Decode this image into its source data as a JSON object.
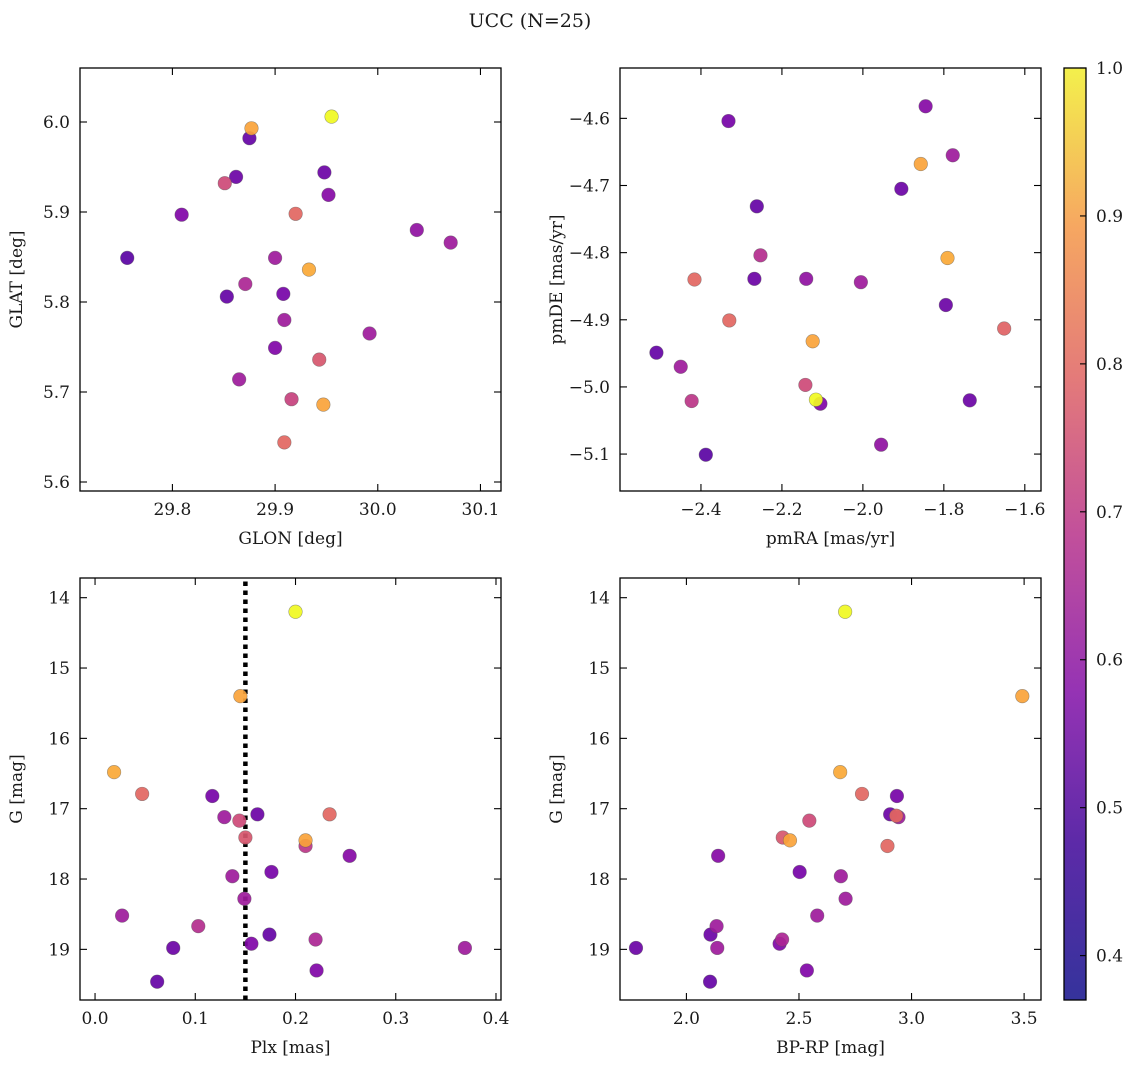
{
  "title": "UCC (N=25)",
  "colorbar": {
    "range": [
      0.37,
      1.0
    ],
    "ticks": [
      "0.4",
      "0.5",
      "0.6",
      "0.7",
      "0.8",
      "0.9",
      "1.0"
    ],
    "colormap": "plasma"
  },
  "chart_data": [
    {
      "type": "scatter",
      "xlabel": "GLON [deg]",
      "ylabel": "GLAT [deg]",
      "xlim": [
        29.71,
        30.12
      ],
      "ylim": [
        5.59,
        6.06
      ],
      "xticks": [
        "29.8",
        "29.9",
        "30.0",
        "30.1"
      ],
      "yticks": [
        "5.6",
        "5.7",
        "5.8",
        "5.9",
        "6.0"
      ],
      "points": [
        {
          "x": 29.955,
          "y": 6.006,
          "c": 1.0
        },
        {
          "x": 29.877,
          "y": 5.993,
          "c": 0.85
        },
        {
          "x": 29.875,
          "y": 5.982,
          "c": 0.42
        },
        {
          "x": 29.862,
          "y": 5.939,
          "c": 0.43
        },
        {
          "x": 29.851,
          "y": 5.932,
          "c": 0.65
        },
        {
          "x": 29.948,
          "y": 5.944,
          "c": 0.43
        },
        {
          "x": 29.952,
          "y": 5.919,
          "c": 0.48
        },
        {
          "x": 29.809,
          "y": 5.897,
          "c": 0.47
        },
        {
          "x": 29.92,
          "y": 5.898,
          "c": 0.72
        },
        {
          "x": 29.756,
          "y": 5.849,
          "c": 0.4
        },
        {
          "x": 29.9,
          "y": 5.849,
          "c": 0.53
        },
        {
          "x": 29.933,
          "y": 5.836,
          "c": 0.86
        },
        {
          "x": 30.038,
          "y": 5.88,
          "c": 0.5
        },
        {
          "x": 30.071,
          "y": 5.866,
          "c": 0.53
        },
        {
          "x": 29.871,
          "y": 5.82,
          "c": 0.56
        },
        {
          "x": 29.853,
          "y": 5.806,
          "c": 0.42
        },
        {
          "x": 29.908,
          "y": 5.809,
          "c": 0.45
        },
        {
          "x": 29.909,
          "y": 5.78,
          "c": 0.53
        },
        {
          "x": 29.992,
          "y": 5.765,
          "c": 0.53
        },
        {
          "x": 29.9,
          "y": 5.749,
          "c": 0.47
        },
        {
          "x": 29.943,
          "y": 5.736,
          "c": 0.68
        },
        {
          "x": 29.865,
          "y": 5.714,
          "c": 0.53
        },
        {
          "x": 29.916,
          "y": 5.692,
          "c": 0.63
        },
        {
          "x": 29.947,
          "y": 5.686,
          "c": 0.85
        },
        {
          "x": 29.909,
          "y": 5.644,
          "c": 0.72
        }
      ]
    },
    {
      "type": "scatter",
      "xlabel": "pmRA [mas/yr]",
      "ylabel": "pmDE [mas/yr]",
      "xlim": [
        -2.6,
        -1.56
      ],
      "ylim": [
        -5.155,
        -4.525
      ],
      "xticks": [
        "−2.4",
        "−2.2",
        "−2.0",
        "−1.8",
        "−1.6"
      ],
      "yticks": [
        "−5.1",
        "−5.0",
        "−4.9",
        "−4.8",
        "−4.7",
        "−4.6"
      ],
      "points": [
        {
          "x": -2.332,
          "y": -4.604,
          "c": 0.45
        },
        {
          "x": -1.845,
          "y": -4.582,
          "c": 0.48
        },
        {
          "x": -1.778,
          "y": -4.655,
          "c": 0.53
        },
        {
          "x": -1.857,
          "y": -4.668,
          "c": 0.85
        },
        {
          "x": -1.905,
          "y": -4.705,
          "c": 0.43
        },
        {
          "x": -2.262,
          "y": -4.731,
          "c": 0.42
        },
        {
          "x": -2.253,
          "y": -4.804,
          "c": 0.58
        },
        {
          "x": -1.791,
          "y": -4.808,
          "c": 0.86
        },
        {
          "x": -2.416,
          "y": -4.84,
          "c": 0.72
        },
        {
          "x": -2.268,
          "y": -4.839,
          "c": 0.43
        },
        {
          "x": -2.14,
          "y": -4.839,
          "c": 0.5
        },
        {
          "x": -2.005,
          "y": -4.844,
          "c": 0.53
        },
        {
          "x": -1.795,
          "y": -4.878,
          "c": 0.43
        },
        {
          "x": -2.33,
          "y": -4.901,
          "c": 0.72
        },
        {
          "x": -1.651,
          "y": -4.913,
          "c": 0.71
        },
        {
          "x": -2.124,
          "y": -4.932,
          "c": 0.85
        },
        {
          "x": -2.51,
          "y": -4.949,
          "c": 0.42
        },
        {
          "x": -2.45,
          "y": -4.97,
          "c": 0.53
        },
        {
          "x": -2.142,
          "y": -4.997,
          "c": 0.65
        },
        {
          "x": -2.423,
          "y": -5.021,
          "c": 0.6
        },
        {
          "x": -2.116,
          "y": -5.019,
          "c": 1.0
        },
        {
          "x": -2.105,
          "y": -5.025,
          "c": 0.47
        },
        {
          "x": -1.736,
          "y": -5.02,
          "c": 0.43
        },
        {
          "x": -1.955,
          "y": -5.086,
          "c": 0.5
        },
        {
          "x": -2.388,
          "y": -5.101,
          "c": 0.4
        }
      ]
    },
    {
      "type": "scatter",
      "xlabel": "Plx [mas]",
      "ylabel": "G [mag]",
      "xlim": [
        -0.015,
        0.405
      ],
      "ylim": [
        19.72,
        13.72
      ],
      "xticks": [
        "0.0",
        "0.1",
        "0.2",
        "0.3",
        "0.4"
      ],
      "yticks": [
        "14",
        "15",
        "16",
        "17",
        "18",
        "19"
      ],
      "vline": 0.15,
      "points": [
        {
          "x": 0.2,
          "y": 14.2,
          "c": 1.0
        },
        {
          "x": 0.145,
          "y": 15.4,
          "c": 0.85
        },
        {
          "x": 0.019,
          "y": 16.48,
          "c": 0.86
        },
        {
          "x": 0.047,
          "y": 16.79,
          "c": 0.72
        },
        {
          "x": 0.117,
          "y": 16.82,
          "c": 0.45
        },
        {
          "x": 0.162,
          "y": 17.08,
          "c": 0.43
        },
        {
          "x": 0.234,
          "y": 17.08,
          "c": 0.72
        },
        {
          "x": 0.129,
          "y": 17.12,
          "c": 0.53
        },
        {
          "x": 0.144,
          "y": 17.17,
          "c": 0.65
        },
        {
          "x": 0.15,
          "y": 17.41,
          "c": 0.68
        },
        {
          "x": 0.21,
          "y": 17.45,
          "c": 0.85
        },
        {
          "x": 0.21,
          "y": 17.53,
          "c": 0.6
        },
        {
          "x": 0.254,
          "y": 17.67,
          "c": 0.48
        },
        {
          "x": 0.176,
          "y": 17.9,
          "c": 0.45
        },
        {
          "x": 0.137,
          "y": 17.96,
          "c": 0.53
        },
        {
          "x": 0.149,
          "y": 18.28,
          "c": 0.53
        },
        {
          "x": 0.027,
          "y": 18.52,
          "c": 0.53
        },
        {
          "x": 0.103,
          "y": 18.67,
          "c": 0.58
        },
        {
          "x": 0.174,
          "y": 18.79,
          "c": 0.42
        },
        {
          "x": 0.22,
          "y": 18.86,
          "c": 0.56
        },
        {
          "x": 0.156,
          "y": 18.92,
          "c": 0.47
        },
        {
          "x": 0.078,
          "y": 18.98,
          "c": 0.43
        },
        {
          "x": 0.369,
          "y": 18.98,
          "c": 0.53
        },
        {
          "x": 0.221,
          "y": 19.3,
          "c": 0.47
        },
        {
          "x": 0.062,
          "y": 19.46,
          "c": 0.42
        }
      ]
    },
    {
      "type": "scatter",
      "xlabel": "BP-RP [mag]",
      "ylabel": "G [mag]",
      "xlim": [
        1.705,
        3.575
      ],
      "ylim": [
        19.72,
        13.72
      ],
      "xticks": [
        "2.0",
        "2.5",
        "3.0",
        "3.5"
      ],
      "yticks": [
        "14",
        "15",
        "16",
        "17",
        "18",
        "19"
      ],
      "points": [
        {
          "x": 2.705,
          "y": 14.2,
          "c": 1.0
        },
        {
          "x": 3.492,
          "y": 15.4,
          "c": 0.85
        },
        {
          "x": 2.683,
          "y": 16.48,
          "c": 0.86
        },
        {
          "x": 2.78,
          "y": 16.79,
          "c": 0.72
        },
        {
          "x": 2.935,
          "y": 16.82,
          "c": 0.45
        },
        {
          "x": 2.905,
          "y": 17.08,
          "c": 0.43
        },
        {
          "x": 2.932,
          "y": 17.1,
          "c": 0.72
        },
        {
          "x": 2.942,
          "y": 17.12,
          "c": 0.53
        },
        {
          "x": 2.546,
          "y": 17.17,
          "c": 0.65
        },
        {
          "x": 2.428,
          "y": 17.41,
          "c": 0.68
        },
        {
          "x": 2.46,
          "y": 17.45,
          "c": 0.85
        },
        {
          "x": 2.893,
          "y": 17.53,
          "c": 0.72
        },
        {
          "x": 2.141,
          "y": 17.67,
          "c": 0.48
        },
        {
          "x": 2.503,
          "y": 17.9,
          "c": 0.45
        },
        {
          "x": 2.686,
          "y": 17.96,
          "c": 0.53
        },
        {
          "x": 2.707,
          "y": 18.28,
          "c": 0.53
        },
        {
          "x": 2.581,
          "y": 18.52,
          "c": 0.53
        },
        {
          "x": 2.134,
          "y": 18.67,
          "c": 0.53
        },
        {
          "x": 2.107,
          "y": 18.79,
          "c": 0.43
        },
        {
          "x": 2.425,
          "y": 18.86,
          "c": 0.56
        },
        {
          "x": 2.414,
          "y": 18.92,
          "c": 0.47
        },
        {
          "x": 1.776,
          "y": 18.98,
          "c": 0.43
        },
        {
          "x": 2.137,
          "y": 18.98,
          "c": 0.53
        },
        {
          "x": 2.535,
          "y": 19.3,
          "c": 0.47
        },
        {
          "x": 2.105,
          "y": 19.46,
          "c": 0.42
        }
      ]
    }
  ]
}
